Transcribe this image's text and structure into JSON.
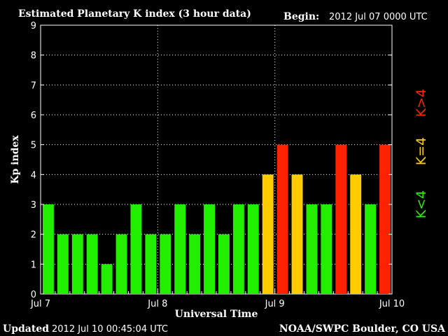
{
  "header": {
    "title": "Estimated Planetary K index (3 hour data)",
    "begin_label": "Begin:",
    "begin_value": "2012 Jul 07 0000 UTC"
  },
  "footer": {
    "updated_label": "Updated",
    "updated_value": "2012 Jul 10 00:45:04 UTC",
    "source": "NOAA/SWPC Boulder, CO USA"
  },
  "legend": {
    "low": "K<4",
    "mid": "K=4",
    "high": "K>4",
    "low_color": "#22ee00",
    "mid_color": "#ffcc00",
    "high_color": "#ff2200"
  },
  "chart_data": {
    "type": "bar",
    "title": "Estimated Planetary K index (3 hour data)",
    "xlabel": "Universal Time",
    "ylabel": "Kp index",
    "ylim": [
      0,
      9
    ],
    "yticks": [
      0,
      1,
      2,
      3,
      4,
      5,
      6,
      7,
      8,
      9
    ],
    "xticks": [
      "Jul 7",
      "Jul 8",
      "Jul 9",
      "Jul 10"
    ],
    "grid": true,
    "bars_per_day": 8,
    "values": [
      3,
      2,
      2,
      2,
      1,
      2,
      3,
      2,
      2,
      3,
      2,
      3,
      2,
      3,
      3,
      4,
      5,
      4,
      3,
      3,
      5,
      4,
      3,
      5
    ],
    "colors": {
      "low": "#22ee00",
      "mid": "#ffcc00",
      "high": "#ff2200"
    }
  }
}
